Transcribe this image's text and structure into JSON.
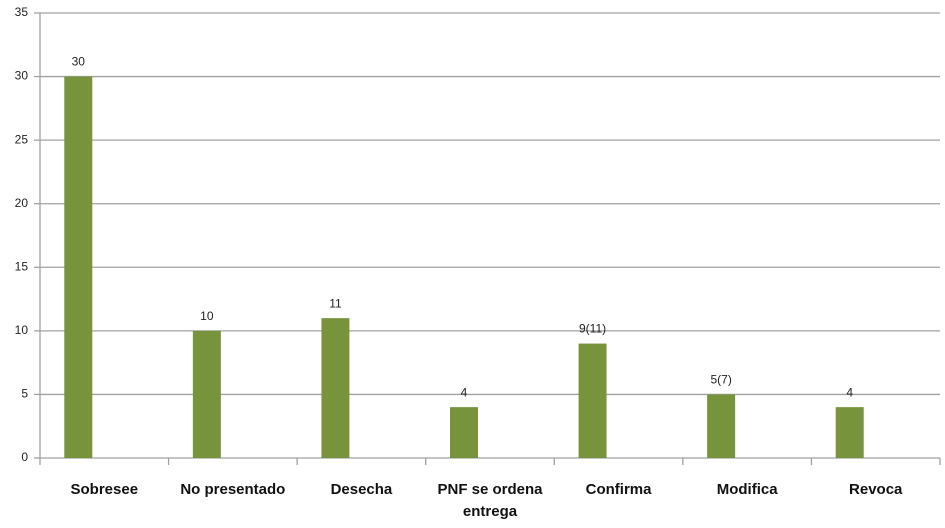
{
  "chart_data": {
    "type": "bar",
    "categories": [
      "Sobresee",
      "No presentado",
      "Desecha",
      "PNF se ordena entrega",
      "Confirma",
      "Modifica",
      "Revoca"
    ],
    "values": [
      30,
      10,
      11,
      4,
      9,
      5,
      4
    ],
    "value_labels": [
      "30",
      "10",
      "11",
      "4",
      "9(11)",
      "5(7)",
      "4"
    ],
    "color": "#77933c",
    "ylim": [
      0,
      35
    ],
    "yticks": [
      0,
      5,
      10,
      15,
      20,
      25,
      30,
      35
    ],
    "grid": true
  }
}
